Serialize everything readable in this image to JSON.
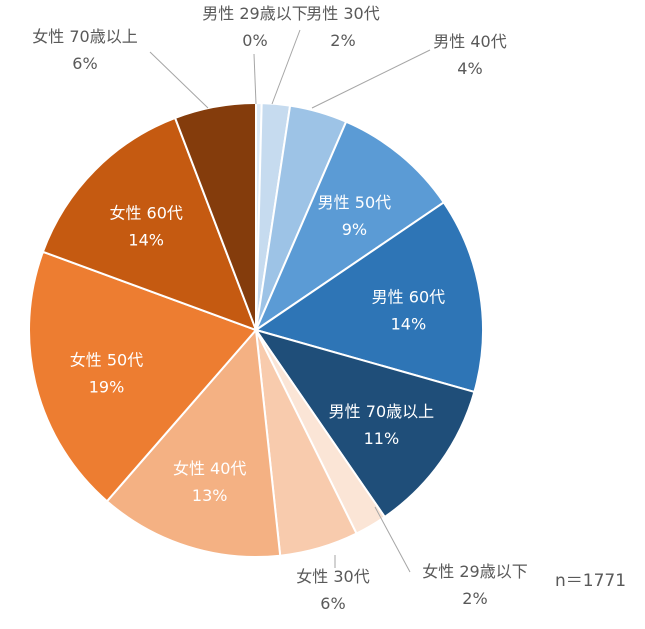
{
  "chart_data": {
    "type": "pie",
    "title": "",
    "note": "n＝1771",
    "categories": [
      "男性 29歳以下",
      "男性 30代",
      "男性 40代",
      "男性 50代",
      "男性 60代",
      "男性 70歳以上",
      "女性 29歳以下",
      "女性 30代",
      "女性 40代",
      "女性 50代",
      "女性 60代",
      "女性 70歳以上"
    ],
    "percent_labels": [
      "0%",
      "2%",
      "4%",
      "9%",
      "14%",
      "11%",
      "2%",
      "6%",
      "13%",
      "19%",
      "14%",
      "6%"
    ],
    "values": [
      0.4,
      2.0,
      4.1,
      9.0,
      13.9,
      11.0,
      2.3,
      5.6,
      13.1,
      19.2,
      13.6,
      5.8
    ],
    "colors": [
      "#deebf7",
      "#c6dbef",
      "#9dc3e6",
      "#5b9bd5",
      "#2e75b6",
      "#1f4e79",
      "#fbe5d6",
      "#f8cbad",
      "#f4b183",
      "#ed7d31",
      "#c55a11",
      "#843c0c"
    ],
    "label_placement": [
      "outside",
      "outside",
      "outside",
      "inside",
      "inside",
      "inside",
      "outside",
      "outside",
      "inside",
      "inside",
      "inside",
      "outside"
    ],
    "start_angle_deg": 0,
    "direction": "clockwise"
  }
}
